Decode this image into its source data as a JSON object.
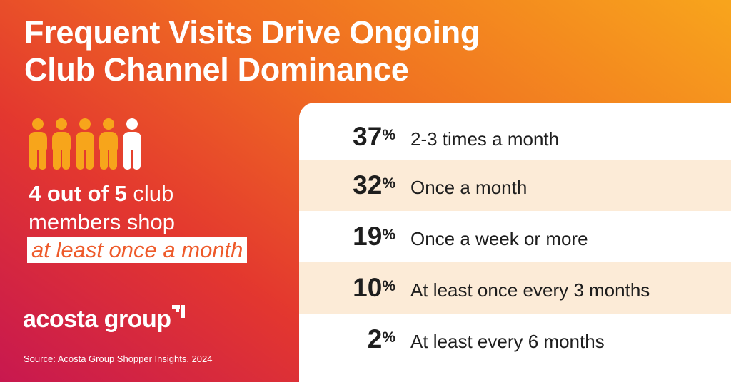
{
  "title": "Frequent Visits Drive Ongoing Club Channel Dominance",
  "icon": {
    "name": "person-icon",
    "highlighted": 4,
    "total": 5,
    "colors": {
      "highlighted": "#f7a51b",
      "other": "#ffffff"
    }
  },
  "stat": {
    "bold": "4 out of 5",
    "rest": " club",
    "line2": "members shop",
    "highlight": "at least once a month"
  },
  "logo": {
    "text": "acosta group"
  },
  "source": "Source: Acosta Group Shopper Insights, 2024",
  "colors": {
    "gradient_start": "#c8184f",
    "gradient_mid": "#ef6a22",
    "gradient_end": "#f8a51c",
    "row_shade": "#fcebd7",
    "highlight_text": "#ee5a2a"
  },
  "chart_data": {
    "type": "table",
    "rows": [
      {
        "value": 37,
        "pct": "37",
        "label": "2-3 times a month"
      },
      {
        "value": 32,
        "pct": "32",
        "label": "Once a month"
      },
      {
        "value": 19,
        "pct": "19",
        "label": "Once a week or more"
      },
      {
        "value": 10,
        "pct": "10",
        "label": "At least once every 3 months"
      },
      {
        "value": 2,
        "pct": "2",
        "label": "At least every 6 months"
      }
    ],
    "unit": "%"
  }
}
